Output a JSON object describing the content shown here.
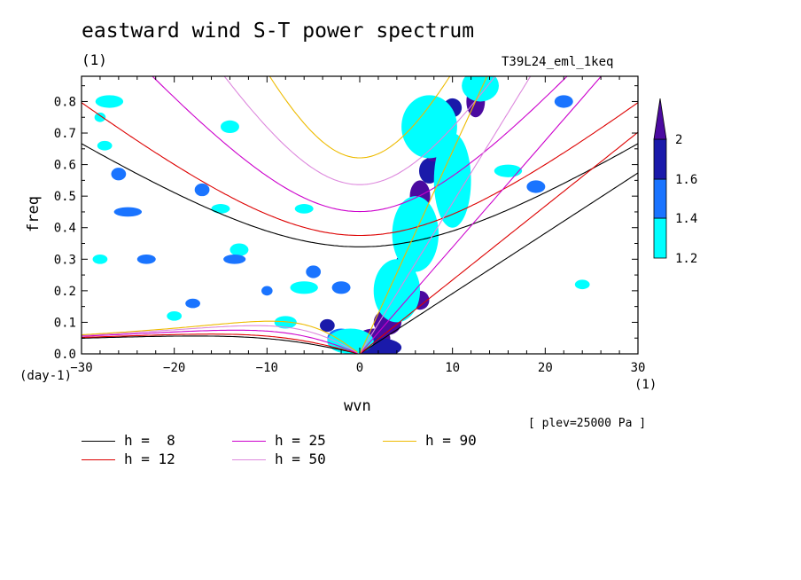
{
  "title": "eastward wind S-T power spectrum",
  "unit_top_left": "(1)",
  "run_label": "T39L24_eml_1keq",
  "plev_label": "[ plev=25000 Pa ]",
  "chart_data": {
    "type": "heatmap",
    "title": "eastward wind S-T power spectrum",
    "xlabel": "wvn",
    "xunit": "(1)",
    "ylabel": "freq",
    "yunit": "(day-1)",
    "xlim": [
      -30,
      30
    ],
    "ylim": [
      0,
      0.88
    ],
    "xticks": [
      -30,
      -20,
      -10,
      0,
      10,
      20,
      30
    ],
    "yticks": [
      0.0,
      0.1,
      0.2,
      0.3,
      0.4,
      0.5,
      0.6,
      0.7,
      0.8
    ],
    "colorbar": {
      "levels": [
        1.2,
        1.4,
        1.6,
        2
      ],
      "colors": [
        "#00ffff",
        "#1a74ff",
        "#1a1aaa",
        "#4b0aa0"
      ]
    },
    "series": [
      {
        "name": "h =  8",
        "h": 8,
        "color": "#000000"
      },
      {
        "name": "h = 12",
        "h": 12,
        "color": "#dd0000"
      },
      {
        "name": "h = 25",
        "h": 25,
        "color": "#cc00cc"
      },
      {
        "name": "h = 50",
        "h": 50,
        "color": "#dd88dd"
      },
      {
        "name": "h = 90",
        "h": 90,
        "color": "#eebb00"
      }
    ]
  }
}
